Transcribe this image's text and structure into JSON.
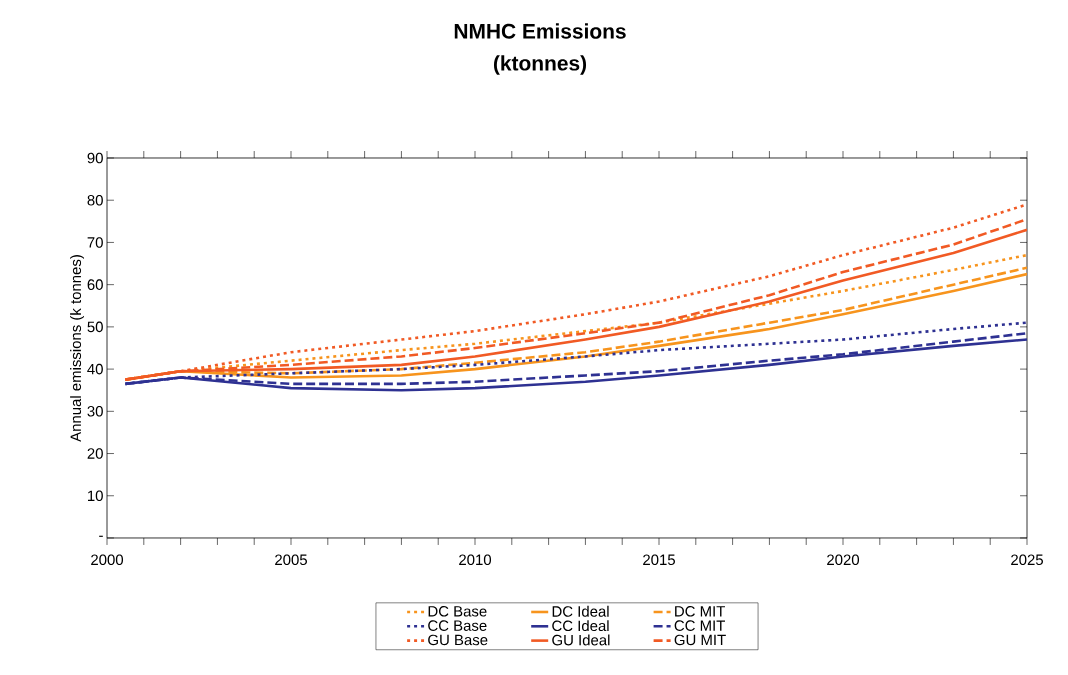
{
  "chart_data": {
    "type": "line",
    "title": "NMHC Emissions",
    "subtitle": "(ktonnes)",
    "ylabel": "Annual emissions (k tonnes)",
    "xlim": [
      2000,
      2025
    ],
    "ylim": [
      0,
      90
    ],
    "xticks": [
      2000,
      {
        "value": 2001,
        "label": null
      },
      {
        "value": 2002,
        "label": null
      },
      {
        "value": 2003,
        "label": null
      },
      {
        "value": 2004,
        "label": null
      },
      2005,
      {
        "value": 2006,
        "label": null
      },
      {
        "value": 2007,
        "label": null
      },
      {
        "value": 2008,
        "label": null
      },
      {
        "value": 2009,
        "label": null
      },
      2010,
      {
        "value": 2011,
        "label": null
      },
      {
        "value": 2012,
        "label": null
      },
      {
        "value": 2013,
        "label": null
      },
      {
        "value": 2014,
        "label": null
      },
      2015,
      {
        "value": 2016,
        "label": null
      },
      {
        "value": 2017,
        "label": null
      },
      {
        "value": 2018,
        "label": null
      },
      {
        "value": 2019,
        "label": null
      },
      2020,
      {
        "value": 2021,
        "label": null
      },
      {
        "value": 2022,
        "label": null
      },
      {
        "value": 2023,
        "label": null
      },
      {
        "value": 2024,
        "label": null
      },
      2025
    ],
    "yticks": [
      {
        "value": 0,
        "label": "-"
      },
      10,
      20,
      30,
      40,
      50,
      60,
      70,
      80,
      90
    ],
    "x": [
      2000.5,
      2002,
      2005,
      2008,
      2010,
      2013,
      2015,
      2018,
      2020,
      2023,
      2025
    ],
    "grid": false,
    "legend": "bottom",
    "marker": "none",
    "series": [
      {
        "name": "DC Base",
        "color": "#f7941d",
        "line_style": "dotted",
        "values": [
          37.5,
          39.5,
          42,
          44.5,
          46,
          49,
          51,
          55.5,
          58.5,
          63.5,
          67
        ]
      },
      {
        "name": "DC Ideal",
        "color": "#f7941d",
        "line_style": "solid",
        "values": [
          37.5,
          39.5,
          38,
          38.5,
          40,
          43,
          45.5,
          49.5,
          53,
          58.5,
          62.5
        ]
      },
      {
        "name": "DC MIT",
        "color": "#f7941d",
        "line_style": "dashed",
        "values": [
          37.5,
          39.5,
          39,
          40,
          41.5,
          44,
          46.5,
          51,
          54,
          60,
          64
        ]
      },
      {
        "name": "CC Base",
        "color": "#2e3192",
        "line_style": "dotted",
        "values": [
          36.5,
          38,
          39,
          40,
          41,
          43,
          44.5,
          46,
          47,
          49.5,
          51
        ]
      },
      {
        "name": "CC Ideal",
        "color": "#2e3192",
        "line_style": "solid",
        "values": [
          36.5,
          38,
          35.5,
          35,
          35.5,
          37,
          38.5,
          41,
          43,
          45.5,
          47
        ]
      },
      {
        "name": "CC MIT",
        "color": "#2e3192",
        "line_style": "dashed",
        "values": [
          36.5,
          38,
          36.5,
          36.5,
          37,
          38.5,
          39.5,
          42,
          43.5,
          46.5,
          48.5
        ]
      },
      {
        "name": "GU Base",
        "color": "#f15a24",
        "line_style": "dotted",
        "values": [
          37.5,
          39.5,
          44,
          47,
          49,
          53,
          56,
          62,
          67,
          73.5,
          79
        ]
      },
      {
        "name": "GU Ideal",
        "color": "#f15a24",
        "line_style": "solid",
        "values": [
          37.5,
          39.5,
          40,
          41,
          43,
          47,
          50,
          56,
          61,
          67.5,
          73
        ]
      },
      {
        "name": "GU MIT",
        "color": "#f15a24",
        "line_style": "dashed",
        "values": [
          37.5,
          39.5,
          41,
          43,
          45,
          48.5,
          51,
          57.5,
          63,
          69.5,
          75.5
        ]
      }
    ]
  }
}
